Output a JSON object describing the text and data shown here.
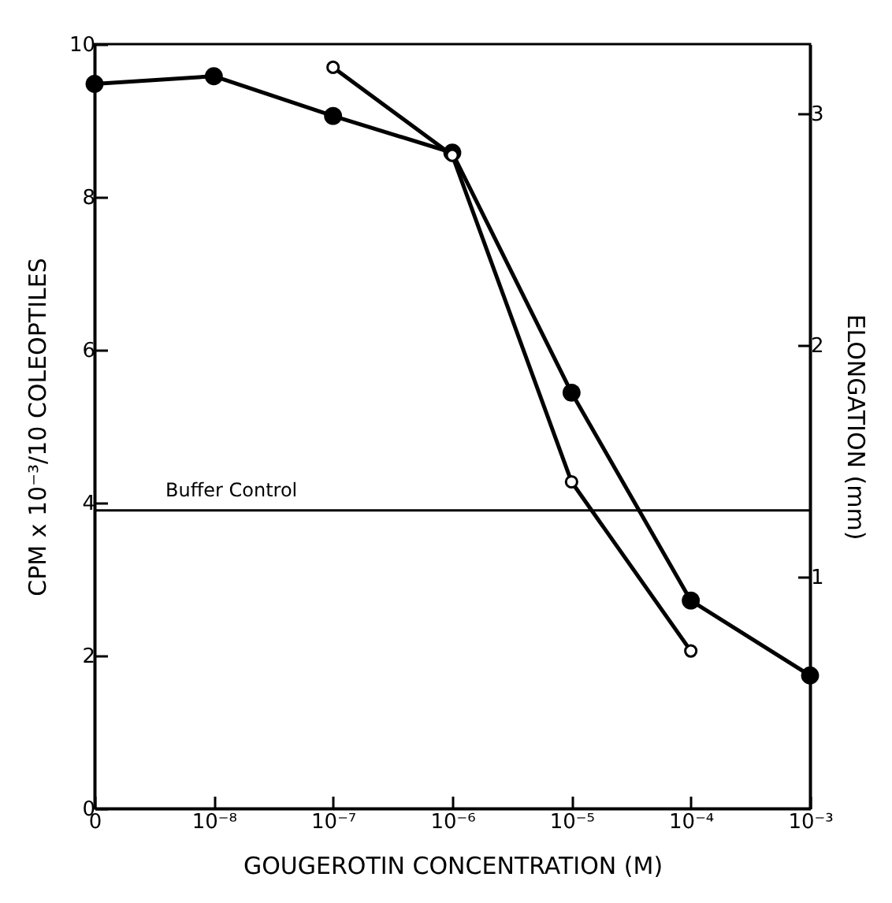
{
  "chart_data": {
    "type": "line",
    "xlabel": "GOUGEROTIN CONCENTRATION (M)",
    "ylabel": "CPM x 10⁻³/10 COLEOPTILES",
    "y2label": "ELONGATION (mm)",
    "categories": [
      "0",
      "10⁻⁸",
      "10⁻⁷",
      "10⁻⁶",
      "10⁻⁵",
      "10⁻⁴",
      "10⁻³"
    ],
    "series": [
      {
        "color": "#000000",
        "values": [
          9.48,
          9.58,
          9.06,
          8.58,
          5.44,
          2.72,
          1.74
        ]
      },
      {
        "color": "#000000",
        "axis": "y2",
        "values": [
          null,
          null,
          3.2,
          2.82,
          1.41,
          0.68,
          null
        ]
      }
    ],
    "ylim": [
      0,
      10
    ],
    "yticks": [
      0,
      2,
      4,
      6,
      8,
      10
    ],
    "y2lim": [
      0,
      3.3
    ],
    "y2ticks": [
      1,
      2,
      3
    ],
    "ref_lines": [
      {
        "axis": "y",
        "value": 3.9,
        "label": "Buffer Control"
      }
    ],
    "marker": "circle",
    "line_style": "solid",
    "grid": false
  }
}
